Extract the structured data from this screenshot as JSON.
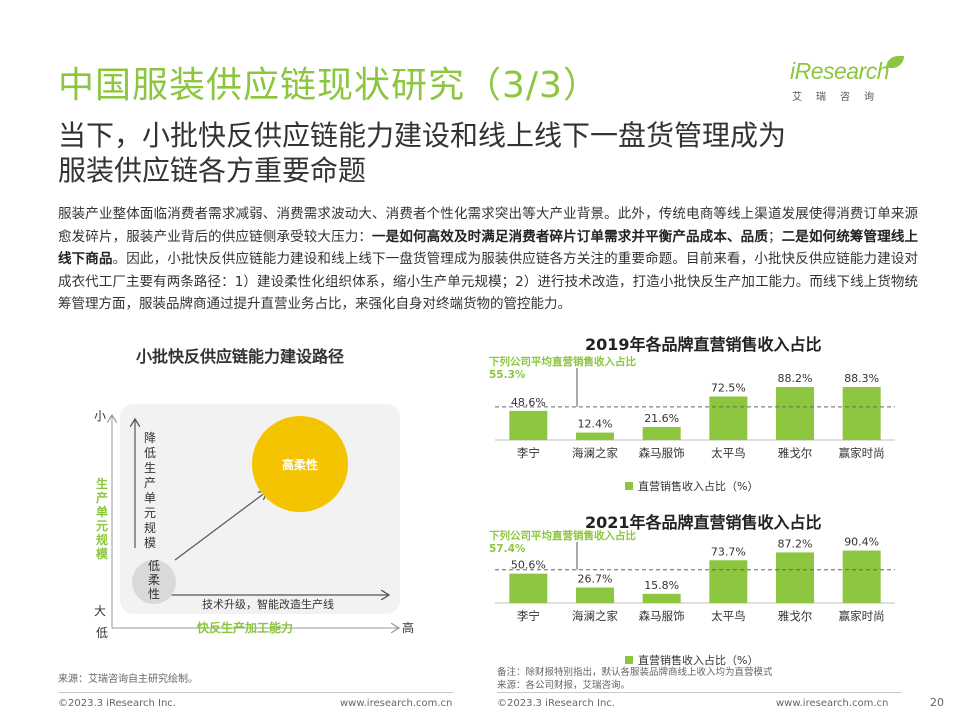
{
  "header": {
    "title": "中国服装供应链现状研究（3/3）",
    "logo_text": "iResearch",
    "logo_sub": "艾瑞咨询",
    "subtitle_line1": "当下，小批快反供应链能力建设和线上线下一盘货管理成为",
    "subtitle_line2": "服装供应链各方重要命题"
  },
  "body": {
    "p1": "服装产业整体面临消费者需求减弱、消费需求波动大、消费者个性化需求突出等大产业背景。此外，传统电商等线上渠道发展使得消费订单来源愈发碎片，服装产业背后的供应链侧承受较大压力：",
    "p1_bold": "一是如何高效及时满足消费者碎片订单需求并平衡产品成本、品质",
    "p2": "；",
    "p2_bold": "二是如何统筹管理线上线下商品",
    "p3": "。因此，小批快反供应链能力建设和线上线下一盘货管理成为服装供应链各方关注的重要命题。目前来看，小批快反供应链能力建设对成衣代工厂主要有两条路径：1）建设柔性化组织体系，缩小生产单元规模；2）进行技术改造，打造小批快反生产加工能力。而线下线上货物统筹管理方面，服装品牌商通过提升直营业务占比，来强化自身对终端货物的管控能力。"
  },
  "diagram": {
    "title": "小批快反供应链能力建设路径",
    "y_top": "小",
    "y_bottom": "大",
    "y_axis_label": "生产单元规模",
    "x_left": "低",
    "x_right": "高",
    "x_axis_label": "快反生产加工能力",
    "vertical_path_label": "降低生产单元规模",
    "horizontal_path_label": "技术升级，智能改造生产线",
    "low_node": "低柔性",
    "high_node": "高柔性"
  },
  "chart_data": [
    {
      "type": "bar",
      "title": "2019年各品牌直营销售收入占比",
      "categories": [
        "李宁",
        "海澜之家",
        "森马服饰",
        "太平鸟",
        "雅戈尔",
        "赢家时尚"
      ],
      "value_labels": [
        "48.6%",
        "12.4%",
        "21.6%",
        "72.5%",
        "88.2%",
        "88.3%"
      ],
      "series": [
        {
          "name": "直营销售收入占比（%）",
          "values": [
            48.6,
            12.4,
            21.6,
            72.5,
            88.2,
            88.3
          ]
        }
      ],
      "reference_line": {
        "label": "下列公司平均直营销售收入占比",
        "value_label": "55.3%",
        "value": 55.3
      },
      "ylim": [
        0,
        100
      ],
      "legend": "bottom",
      "color": "#8cc63f"
    },
    {
      "type": "bar",
      "title": "2021年各品牌直营销售收入占比",
      "categories": [
        "李宁",
        "海澜之家",
        "森马服饰",
        "太平鸟",
        "雅戈尔",
        "赢家时尚"
      ],
      "value_labels": [
        "50.6%",
        "26.7%",
        "15.8%",
        "73.7%",
        "87.2%",
        "90.4%"
      ],
      "series": [
        {
          "name": "直营销售收入占比（%）",
          "values": [
            50.6,
            26.7,
            15.8,
            73.7,
            87.2,
            90.4
          ]
        }
      ],
      "reference_line": {
        "label": "下列公司平均直营销售收入占比",
        "value_label": "57.4%",
        "value": 57.4
      },
      "ylim": [
        0,
        100
      ],
      "legend": "bottom",
      "color": "#8cc63f"
    }
  ],
  "footer": {
    "source_left": "来源：艾瑞咨询自主研究绘制。",
    "note_right_1": "备注：除财报特别指出，默认各服装品牌商线上收入均为直营模式",
    "note_right_2": "来源：各公司财报，艾瑞咨询。",
    "copyright_left": "©2023.3 iResearch Inc.",
    "url_left": "www.iresearch.com.cn",
    "copyright_right": "©2023.3 iResearch Inc.",
    "url_right": "www.iresearch.com.cn",
    "page": "20"
  }
}
